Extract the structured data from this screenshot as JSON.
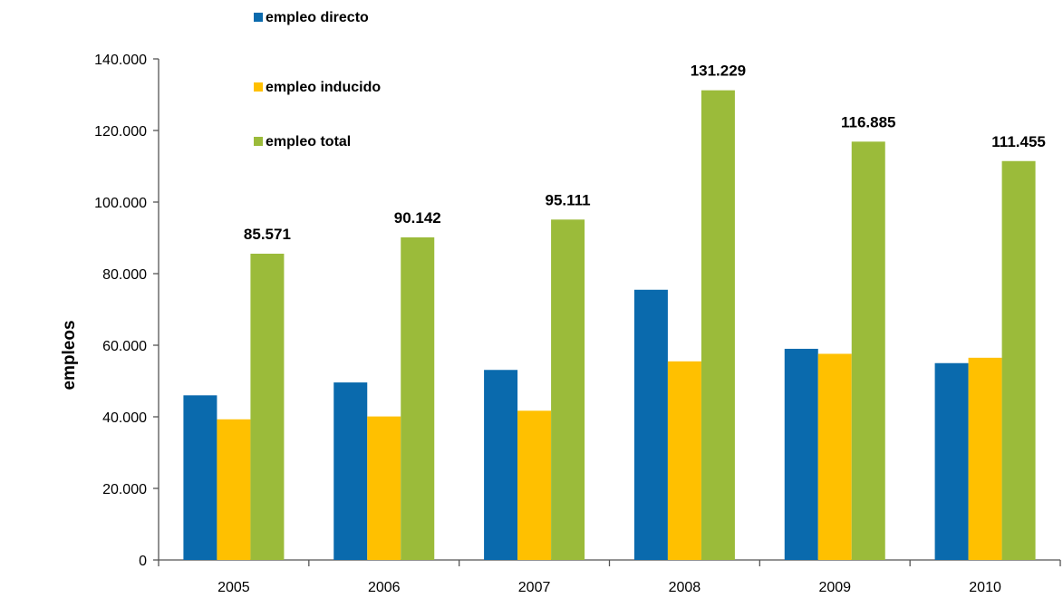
{
  "chart_data": {
    "type": "bar",
    "title": "",
    "xlabel": "",
    "ylabel": "empleos",
    "categories": [
      "2005",
      "2006",
      "2007",
      "2008",
      "2009",
      "2010"
    ],
    "series": [
      {
        "name": "empleo directo",
        "color": "#0a6aad",
        "values": [
          46000,
          49600,
          53100,
          75500,
          59000,
          55000
        ]
      },
      {
        "name": "empleo inducido",
        "color": "#ffc000",
        "values": [
          39300,
          40100,
          41700,
          55500,
          57600,
          56500
        ]
      },
      {
        "name": "empleo total",
        "color": "#9bbb3a",
        "values": [
          85571,
          90142,
          95111,
          131229,
          116885,
          111455
        ]
      }
    ],
    "data_labels": {
      "series": "empleo total",
      "labels": [
        "85.571",
        "90.142",
        "95.111",
        "131.229",
        "116.885",
        "111.455"
      ]
    },
    "y_ticks": [
      {
        "value": 0,
        "label": "0"
      },
      {
        "value": 20000,
        "label": "20.000"
      },
      {
        "value": 40000,
        "label": "40.000"
      },
      {
        "value": 60000,
        "label": "60.000"
      },
      {
        "value": 80000,
        "label": "80.000"
      },
      {
        "value": 100000,
        "label": "100.000"
      },
      {
        "value": 120000,
        "label": "120.000"
      },
      {
        "value": 140000,
        "label": "140.000"
      }
    ],
    "ylim": [
      0,
      140000
    ],
    "grid": false,
    "legend_position": "top-left"
  }
}
